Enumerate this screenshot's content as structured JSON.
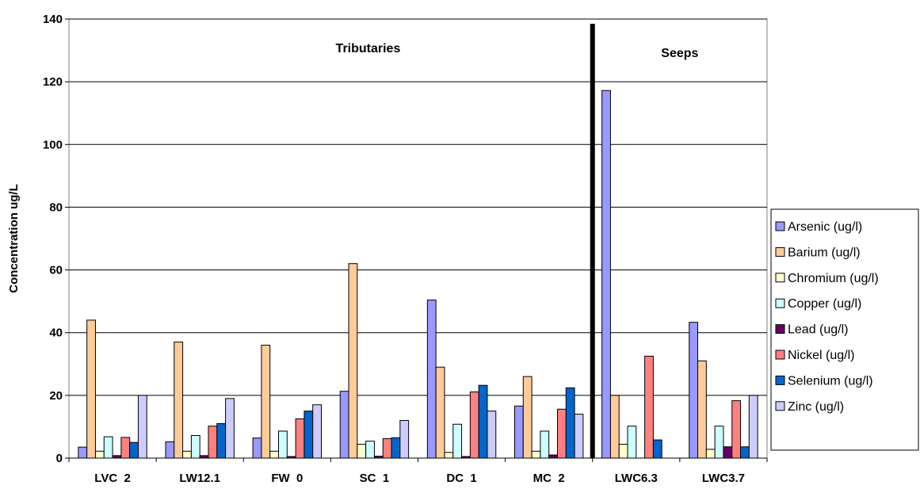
{
  "chart_data": {
    "type": "bar",
    "title": "",
    "xlabel": "",
    "ylabel": "Concentration ug/L",
    "ylim": [
      0,
      140
    ],
    "yticks": [
      0,
      20,
      40,
      60,
      80,
      100,
      120,
      140
    ],
    "grid": "horizontal",
    "legend_position": "right",
    "categories": [
      "LVC  2",
      "LW12.1",
      "FW  0",
      "SC  1",
      "DC  1",
      "MC  2",
      "LWC6.3",
      "LWC3.7"
    ],
    "series": [
      {
        "name": "Arsenic (ug/l)",
        "color": "#9999ff",
        "values": [
          3.5,
          5.2,
          6.4,
          21.3,
          50.4,
          16.6,
          117.2,
          43.3
        ]
      },
      {
        "name": "Barium (ug/l)",
        "color": "#ffcc99",
        "values": [
          44,
          37,
          36,
          62,
          29,
          26,
          20,
          31
        ]
      },
      {
        "name": "Chromium (ug/l)",
        "color": "#ffffcc",
        "values": [
          2.2,
          2.2,
          2.2,
          4.4,
          1.8,
          2.2,
          4.4,
          2.8
        ]
      },
      {
        "name": "Copper (ug/l)",
        "color": "#ccffff",
        "values": [
          6.8,
          7.2,
          8.6,
          5.4,
          10.8,
          8.6,
          10.2,
          10.2
        ]
      },
      {
        "name": "Lead (ug/l)",
        "color": "#660066",
        "values": [
          0.8,
          0.8,
          0.5,
          0.6,
          0.5,
          1.0,
          0,
          3.6
        ]
      },
      {
        "name": "Nickel (ug/l)",
        "color": "#ff8080",
        "values": [
          6.6,
          10.2,
          12.5,
          6.2,
          21.1,
          15.6,
          32.5,
          18.3
        ]
      },
      {
        "name": "Selenium (ug/l)",
        "color": "#0066cc",
        "values": [
          5,
          11,
          15,
          6.5,
          23.2,
          22.4,
          5.8,
          3.6
        ]
      },
      {
        "name": "Zinc (ug/l)",
        "color": "#ccccff",
        "values": [
          20,
          19,
          17,
          12,
          15,
          14,
          0,
          20
        ]
      }
    ],
    "annotations": [
      {
        "text": "Tributaries"
      },
      {
        "text": "Seeps"
      }
    ]
  }
}
